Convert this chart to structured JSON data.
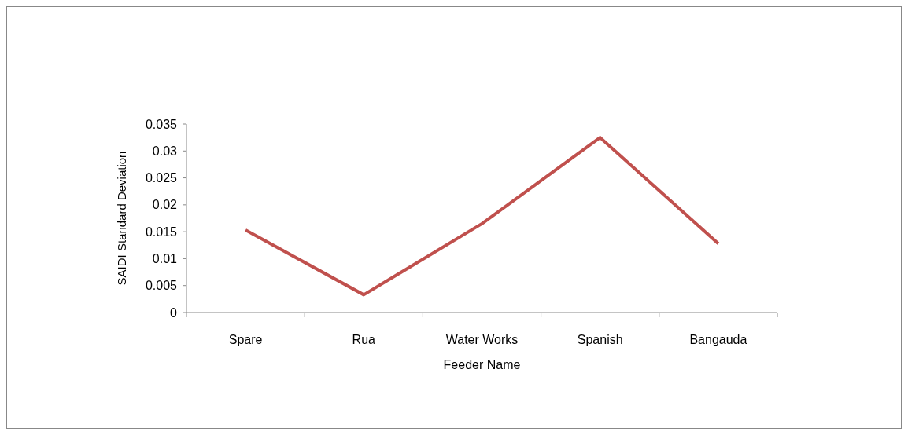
{
  "chart_data": {
    "type": "line",
    "xlabel": "Feeder Name",
    "ylabel": "SAIDI Standard Deviation",
    "categories": [
      "Spare",
      "Rua",
      "Water Works",
      "Spanish",
      "Bangauda"
    ],
    "series": [
      {
        "color": "#c0504d",
        "values": [
          0.0153,
          0.0033,
          0.0165,
          0.0325,
          0.0128
        ]
      }
    ],
    "ylim": [
      0,
      0.035
    ],
    "yticks": [
      0,
      0.005,
      0.01,
      0.015,
      0.02,
      0.025,
      0.03,
      0.035
    ],
    "grid": false,
    "marker": "none",
    "line_style": "solid"
  }
}
